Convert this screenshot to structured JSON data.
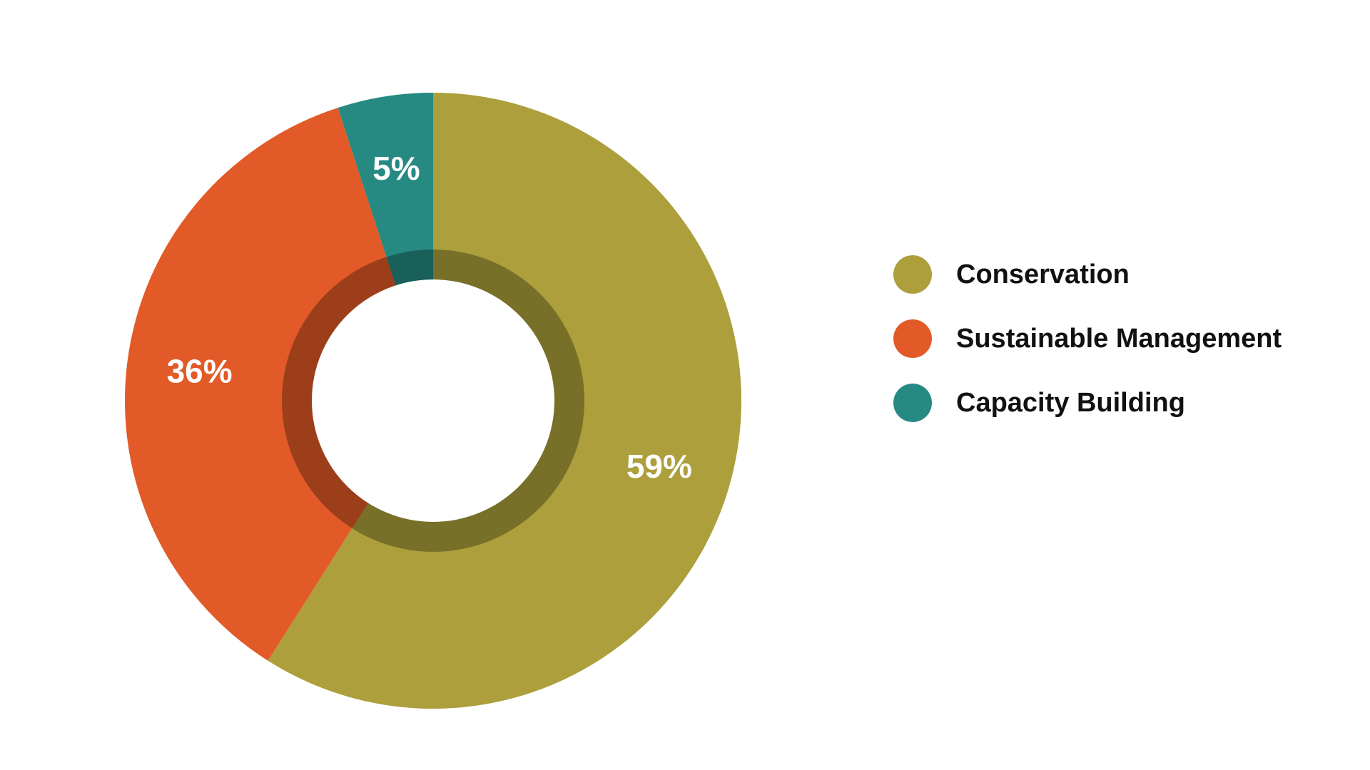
{
  "chart_data": {
    "type": "pie",
    "style": "donut",
    "title": "",
    "categories": [
      "Conservation",
      "Sustainable Management",
      "Capacity Building"
    ],
    "values": [
      59,
      36,
      5
    ],
    "labels": [
      "59%",
      "36%",
      "5%"
    ],
    "colors": [
      "#AC9F3C",
      "#E15A27",
      "#268A82"
    ],
    "legend": {
      "placement": "right",
      "entries": [
        {
          "label": "Conservation",
          "color": "#AC9F3C"
        },
        {
          "label": "Sustainable Management",
          "color": "#E15A27"
        },
        {
          "label": "Capacity Building",
          "color": "#268A82"
        }
      ]
    }
  }
}
